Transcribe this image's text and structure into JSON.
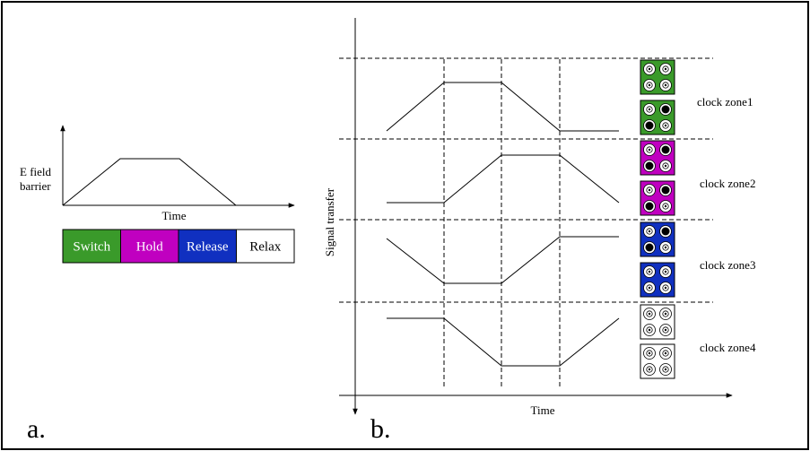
{
  "panel_a": {
    "label": "a.",
    "y_label_line1": "E field",
    "y_label_line2": "barrier",
    "x_label": "Time",
    "phases": [
      {
        "label": "Switch",
        "color": "#3a9a2a",
        "text_color": "#ffffff"
      },
      {
        "label": "Hold",
        "color": "#c000c0",
        "text_color": "#ffffff"
      },
      {
        "label": "Release",
        "color": "#1030c0",
        "text_color": "#ffffff"
      },
      {
        "label": "Relax",
        "color": "#ffffff",
        "text_color": "#000000"
      }
    ]
  },
  "panel_b": {
    "label": "b.",
    "y_label": "Signal transfer",
    "x_label": "Time",
    "zones": [
      {
        "label": "clock zone1",
        "color": "#3a9a2a",
        "cell_top": "empty",
        "cell_bottom": "diag"
      },
      {
        "label": "clock zone2",
        "color": "#c000c0",
        "cell_top": "diag",
        "cell_bottom": "diag"
      },
      {
        "label": "clock zone3",
        "color": "#1030c0",
        "cell_top": "diag",
        "cell_bottom": "empty"
      },
      {
        "label": "clock zone4",
        "color": "#ffffff",
        "cell_top": "empty",
        "cell_bottom": "empty"
      }
    ]
  }
}
